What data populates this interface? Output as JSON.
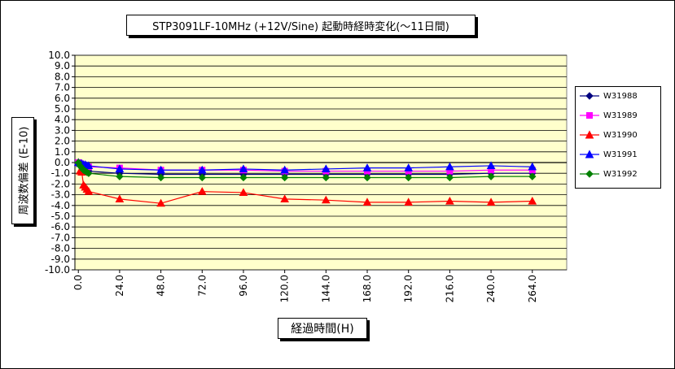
{
  "chart_data": {
    "type": "line",
    "title": "STP3091LF-10MHz (+12V/Sine) 起動時経時変化(～11日間)",
    "xlabel": "経過時間(H)",
    "ylabel": "周波数偏差 (E-10)",
    "x": [
      0,
      1,
      2,
      3,
      4,
      5,
      6,
      24,
      48,
      72,
      96,
      120,
      144,
      168,
      192,
      216,
      240,
      264
    ],
    "xticks": [
      0,
      24,
      48,
      72,
      96,
      120,
      144,
      168,
      192,
      216,
      240,
      264
    ],
    "xtick_labels": [
      "0.0",
      "24.0",
      "48.0",
      "72.0",
      "96.0",
      "120.0",
      "144.0",
      "168.0",
      "192.0",
      "216.0",
      "240.0",
      "264.0"
    ],
    "xlim": [
      -2,
      284
    ],
    "ylim": [
      -10,
      10
    ],
    "yticks": [
      10,
      9,
      8,
      7,
      6,
      5,
      4,
      3,
      2,
      1,
      0,
      -1,
      -2,
      -3,
      -4,
      -5,
      -6,
      -7,
      -8,
      -9,
      -10
    ],
    "ytick_labels": [
      "10.0",
      "9.0",
      "8.0",
      "7.0",
      "6.0",
      "5.0",
      "4.0",
      "3.0",
      "2.0",
      "1.0",
      "0.0",
      "-1.0",
      "-2.0",
      "-3.0",
      "-4.0",
      "-5.0",
      "-6.0",
      "-7.0",
      "-8.0",
      "-9.0",
      "-10.0"
    ],
    "grid": true,
    "legend_position": "right",
    "series": [
      {
        "name": "W31988",
        "color": "#000080",
        "marker": "diamond",
        "values": [
          0,
          -0.2,
          -0.4,
          -0.5,
          -0.6,
          -0.7,
          -0.8,
          -1.0,
          -1.1,
          -1.1,
          -1.1,
          -1.1,
          -1.1,
          -1.1,
          -1.1,
          -1.1,
          -1.0,
          -1.0
        ]
      },
      {
        "name": "W31989",
        "color": "#ff00ff",
        "marker": "square",
        "values": [
          0,
          -0.1,
          -0.2,
          -0.3,
          -0.3,
          -0.4,
          -0.4,
          -0.5,
          -0.7,
          -0.7,
          -0.7,
          -0.8,
          -0.8,
          -0.8,
          -0.8,
          -0.8,
          -0.7,
          -0.7
        ]
      },
      {
        "name": "W31990",
        "color": "#ff0000",
        "marker": "triangle",
        "values": [
          0,
          -0.8,
          -0.9,
          -2.1,
          -2.3,
          -2.5,
          -2.7,
          -3.4,
          -3.8,
          -2.7,
          -2.8,
          -3.4,
          -3.5,
          -3.7,
          -3.7,
          -3.6,
          -3.7,
          -3.6
        ]
      },
      {
        "name": "W31991",
        "color": "#0000ff",
        "marker": "triangle",
        "values": [
          0,
          -0.1,
          -0.1,
          -0.2,
          -0.2,
          -0.3,
          -0.3,
          -0.6,
          -0.7,
          -0.7,
          -0.6,
          -0.7,
          -0.6,
          -0.5,
          -0.5,
          -0.4,
          -0.3,
          -0.4
        ]
      },
      {
        "name": "W31992",
        "color": "#008000",
        "marker": "diamond",
        "values": [
          0,
          -0.3,
          -0.5,
          -0.7,
          -0.8,
          -0.9,
          -1.0,
          -1.3,
          -1.4,
          -1.4,
          -1.4,
          -1.4,
          -1.4,
          -1.4,
          -1.4,
          -1.4,
          -1.3,
          -1.3
        ]
      }
    ]
  }
}
